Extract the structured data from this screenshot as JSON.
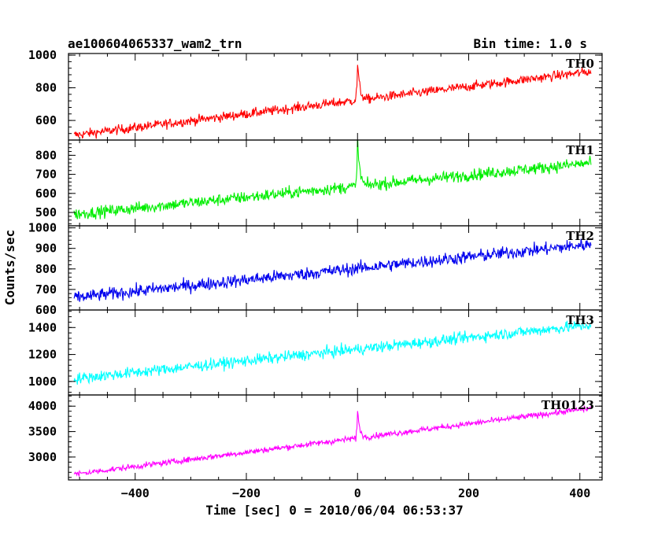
{
  "header": {
    "left_title": "ae100604065337_wam2_trn",
    "right_title": "Bin time: 1.0 s"
  },
  "chart_data": {
    "type": "line",
    "xlabel": "Time [sec] 0 = 2010/06/04 06:53:37",
    "ylabel": "Counts/sec",
    "xlim": [
      -520,
      440
    ],
    "x_ticks": [
      -400,
      -200,
      0,
      200,
      400
    ],
    "x_tick_labels": [
      "−400",
      "−200",
      "0",
      "200",
      "400"
    ],
    "x_range_data": [
      -510,
      420
    ],
    "panels": [
      {
        "label": "TH0",
        "color": "#ff0000",
        "ylim": [
          480,
          1010
        ],
        "yticks": [
          600,
          800,
          1000
        ],
        "ytick_labels": [
          "600",
          "800",
          "1000"
        ],
        "trend_start": 510,
        "trend_end": 900,
        "noise": 28,
        "spike_peak": 950
      },
      {
        "label": "TH1",
        "color": "#00ee00",
        "ylim": [
          430,
          880
        ],
        "yticks": [
          500,
          600,
          700,
          800
        ],
        "ytick_labels": [
          "500",
          "600",
          "700",
          "800"
        ],
        "trend_start": 490,
        "trend_end": 760,
        "noise": 30,
        "spike_peak": 880
      },
      {
        "label": "TH2",
        "color": "#0000ee",
        "ylim": [
          600,
          1010
        ],
        "yticks": [
          600,
          700,
          800,
          900,
          1000
        ],
        "ytick_labels": [
          "600",
          "700",
          "800",
          "900",
          "1000"
        ],
        "trend_start": 660,
        "trend_end": 920,
        "noise": 30,
        "spike_peak": null
      },
      {
        "label": "TH3",
        "color": "#00ffff",
        "ylim": [
          900,
          1530
        ],
        "yticks": [
          1000,
          1200,
          1400
        ],
        "ytick_labels": [
          "1000",
          "1200",
          "1400"
        ],
        "trend_start": 1020,
        "trend_end": 1420,
        "noise": 40,
        "spike_peak": null
      },
      {
        "label": "TH0123",
        "color": "#ff00ff",
        "ylim": [
          2550,
          4220
        ],
        "yticks": [
          3000,
          3500,
          4000
        ],
        "ytick_labels": [
          "3000",
          "3500",
          "4000"
        ],
        "trend_start": 2660,
        "trend_end": 3960,
        "noise": 55,
        "spike_peak": 3900
      }
    ]
  }
}
